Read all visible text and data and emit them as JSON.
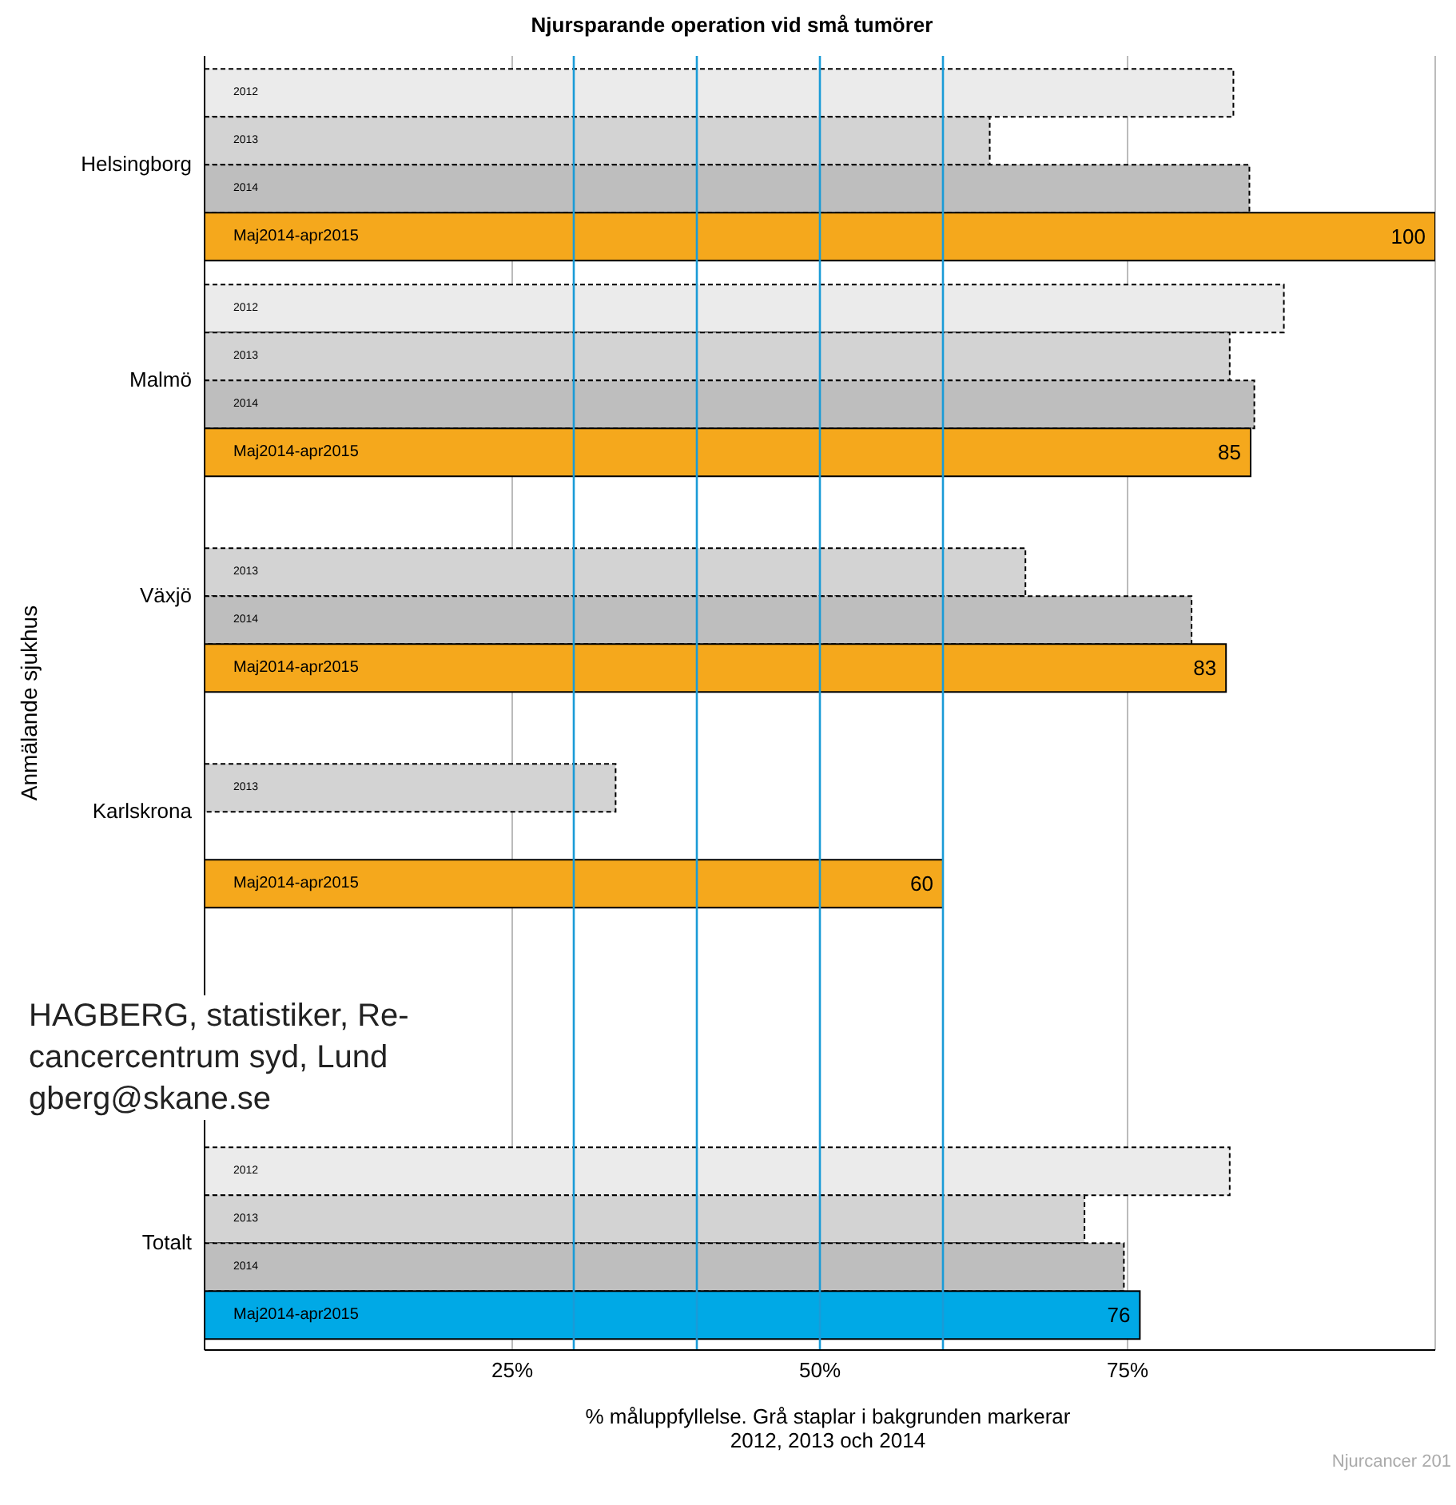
{
  "chart_data": {
    "type": "bar",
    "orientation": "horizontal",
    "title": "Njursparande operation vid små tumörer",
    "xlabel": "% måluppfyllelse. Grå staplar i bakgrunden markerar\n2012, 2013 och 2014",
    "ylabel": "Anmälande sjukhus",
    "categories": [
      "Helsingborg",
      "Malmö",
      "Växjö",
      "Karlskrona",
      null,
      "Totalt"
    ],
    "series": [
      {
        "name": "2012",
        "color": "#ebebeb",
        "line_style": "dashed",
        "values": [
          83.6,
          87.7,
          null,
          null,
          null,
          83.3
        ]
      },
      {
        "name": "2013",
        "color": "#d3d3d3",
        "line_style": "dashed",
        "values": [
          63.8,
          83.3,
          66.7,
          33.4,
          null,
          71.5
        ]
      },
      {
        "name": "2014",
        "color": "#bebebe",
        "line_style": "dashed",
        "values": [
          84.9,
          85.3,
          80.2,
          null,
          null,
          74.7
        ]
      },
      {
        "name": "Maj2014-apr2015",
        "color": "#f5a81c",
        "colors": [
          "#f5a81c",
          "#f5a81c",
          "#f5a81c",
          "#f5a81c",
          "#f5a81c",
          "#00a9e6"
        ],
        "line_style": "solid",
        "values": [
          100,
          85,
          83,
          60,
          null,
          76
        ],
        "value_labels": [
          "100",
          "85",
          "83",
          "60",
          null,
          "76"
        ]
      }
    ],
    "xlim": [
      0,
      100
    ],
    "xticks": [
      {
        "value": 25,
        "label": "25%"
      },
      {
        "value": 50,
        "label": "50%"
      },
      {
        "value": 75,
        "label": "75%"
      }
    ],
    "grid": "x",
    "ref_lines": [
      {
        "axis": "x",
        "value": 30,
        "color": "#1a9bd7"
      },
      {
        "axis": "x",
        "value": 40,
        "color": "#1a9bd7"
      },
      {
        "axis": "x",
        "value": 50,
        "color": "#1a9bd7"
      },
      {
        "axis": "x",
        "value": 60,
        "color": "#1a9bd7"
      }
    ],
    "annotations": [
      "HAGBERG, statistiker, Re-",
      "cancercentrum syd, Lund",
      "gberg@skane.se",
      "Njurcancer 201"
    ]
  }
}
